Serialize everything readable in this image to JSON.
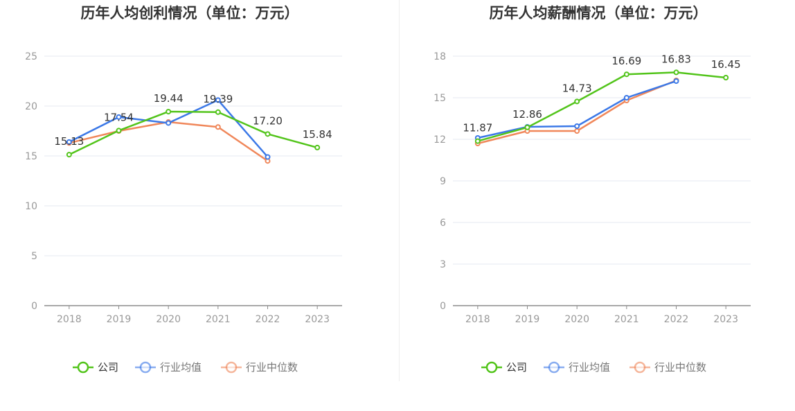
{
  "colors": {
    "company": "#52c41a",
    "industry_avg": "#3b78e7",
    "industry_median": "#f0875a",
    "grid": "#e6e8f0",
    "axis": "#8c8c8c",
    "tick_text": "#999999",
    "title": "#333333",
    "label_text": "#333333"
  },
  "legend": {
    "company": "公司",
    "industry_avg": "行业均值",
    "industry_median": "行业中位数"
  },
  "chart_data": [
    {
      "type": "line",
      "title": "历年人均创利情况（单位：万元）",
      "categories": [
        "2018",
        "2019",
        "2020",
        "2021",
        "2022",
        "2023"
      ],
      "ylim": [
        0,
        25
      ],
      "yticks": [
        0,
        5,
        10,
        15,
        20,
        25
      ],
      "series": [
        {
          "key": "company",
          "name": "公司",
          "values": [
            15.13,
            17.54,
            19.44,
            19.39,
            17.2,
            15.84
          ]
        },
        {
          "key": "industry_avg",
          "name": "行业均值",
          "values": [
            16.4,
            18.9,
            18.3,
            20.6,
            14.9,
            null
          ]
        },
        {
          "key": "industry_median",
          "name": "行业中位数",
          "values": [
            16.3,
            17.5,
            18.4,
            17.9,
            14.5,
            null
          ]
        }
      ],
      "data_labels": [
        "15.13",
        "17.54",
        "19.44",
        "19.39",
        "17.20",
        "15.84"
      ]
    },
    {
      "type": "line",
      "title": "历年人均薪酬情况（单位：万元）",
      "categories": [
        "2018",
        "2019",
        "2020",
        "2021",
        "2022",
        "2023"
      ],
      "ylim": [
        0,
        18
      ],
      "yticks": [
        0,
        3,
        6,
        9,
        12,
        15,
        18
      ],
      "series": [
        {
          "key": "company",
          "name": "公司",
          "values": [
            11.87,
            12.86,
            14.73,
            16.69,
            16.83,
            16.45
          ]
        },
        {
          "key": "industry_avg",
          "name": "行业均值",
          "values": [
            12.1,
            12.9,
            12.95,
            15.0,
            16.2,
            null
          ]
        },
        {
          "key": "industry_median",
          "name": "行业中位数",
          "values": [
            11.7,
            12.6,
            12.6,
            14.8,
            16.25,
            null
          ]
        }
      ],
      "data_labels": [
        "11.87",
        "12.86",
        "14.73",
        "16.69",
        "16.83",
        "16.45"
      ]
    }
  ]
}
